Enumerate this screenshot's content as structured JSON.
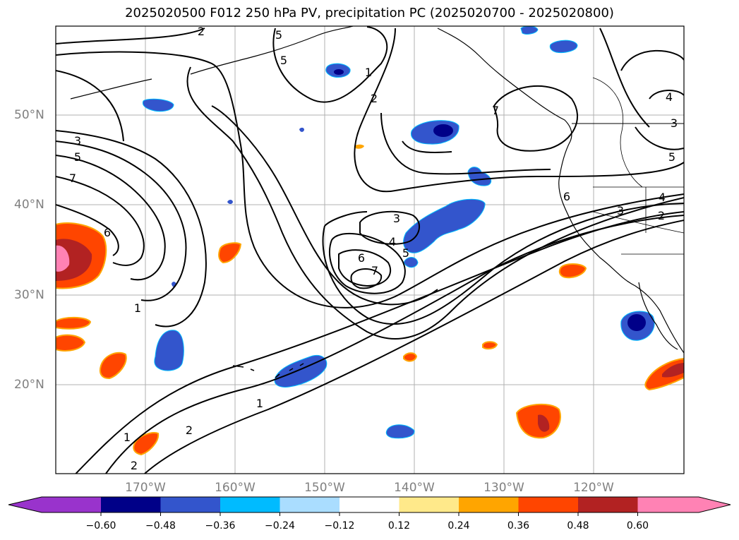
{
  "title": "2025020500 F012 250 hPa PV, precipitation PC (2025020700 - 2025020800)",
  "map": {
    "variables": [
      "250 hPa PV (contours)",
      "precipitation PC (shaded)"
    ],
    "lat_labels": [
      "50°N",
      "40°N",
      "30°N",
      "20°N"
    ],
    "lon_labels": [
      "170°W",
      "160°W",
      "150°W",
      "140°W",
      "130°W",
      "120°W"
    ],
    "contour_labels": [
      "2",
      "5",
      "5",
      "1",
      "2",
      "3",
      "5",
      "7",
      "6",
      "1",
      "3",
      "4",
      "5",
      "6",
      "7",
      "1",
      "2",
      "1",
      "2",
      "7",
      "6",
      "3",
      "2",
      "4",
      "5",
      "3",
      "4"
    ]
  },
  "colorbar": {
    "ticks": [
      "−0.60",
      "−0.48",
      "−0.36",
      "−0.24",
      "−0.12",
      "0.12",
      "0.24",
      "0.36",
      "0.48",
      "0.60"
    ],
    "colors": [
      "#9933cc",
      "#000088",
      "#3355cc",
      "#00bbff",
      "#aaddff",
      "#ffffff",
      "#ffe98a",
      "#ffa500",
      "#ff4500",
      "#b22222",
      "#ff82b4"
    ]
  }
}
